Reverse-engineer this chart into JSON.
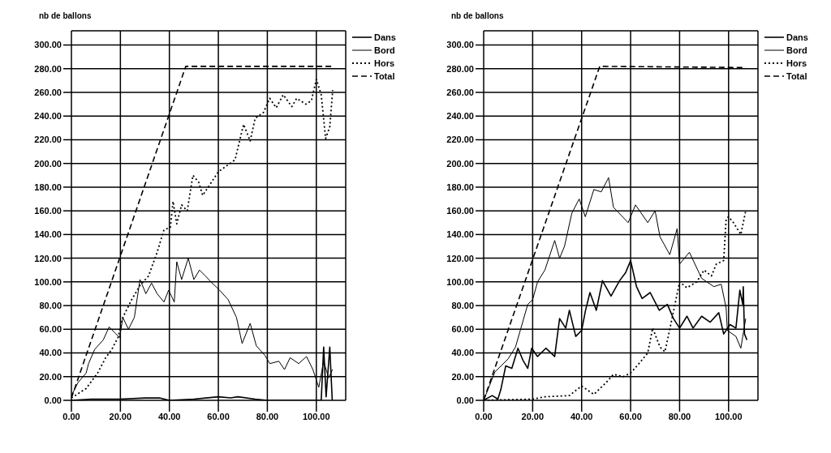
{
  "chart_data": [
    {
      "type": "line",
      "ylabel": "nb de ballons",
      "xlim": [
        0,
        112
      ],
      "ylim": [
        0,
        312
      ],
      "xticks": [
        {
          "value": 0,
          "label": "0.00"
        },
        {
          "value": 20,
          "label": "20.00"
        },
        {
          "value": 40,
          "label": "40.00"
        },
        {
          "value": 60,
          "label": "60.00"
        },
        {
          "value": 80,
          "label": "80.00"
        },
        {
          "value": 100,
          "label": "100.00"
        }
      ],
      "yticks": [
        {
          "value": 0,
          "label": "0.00"
        },
        {
          "value": 20,
          "label": "20.00"
        },
        {
          "value": 40,
          "label": "40.00"
        },
        {
          "value": 60,
          "label": "60.00"
        },
        {
          "value": 80,
          "label": "80.00"
        },
        {
          "value": 100,
          "label": "100.00"
        },
        {
          "value": 120,
          "label": "120.00"
        },
        {
          "value": 140,
          "label": "140.00"
        },
        {
          "value": 160,
          "label": "160.00"
        },
        {
          "value": 180,
          "label": "180.00"
        },
        {
          "value": 200,
          "label": "200.00"
        },
        {
          "value": 220,
          "label": "220.00"
        },
        {
          "value": 240,
          "label": "240.00"
        },
        {
          "value": 260,
          "label": "260.00"
        },
        {
          "value": 280,
          "label": "280.00"
        },
        {
          "value": 300,
          "label": "300.00"
        }
      ],
      "grid": true,
      "legend": "top right",
      "marker": "none",
      "series": [
        {
          "name": "Dans",
          "color": "#000000",
          "line_style": "solid",
          "x": [
            0,
            8,
            20,
            30,
            36,
            40,
            50,
            60,
            65,
            68,
            75,
            80,
            90,
            102,
            103,
            104,
            105.5,
            106.5
          ],
          "values": [
            0,
            1,
            1,
            2,
            2,
            0,
            1,
            3,
            2,
            3,
            1,
            0,
            0,
            0,
            45,
            3,
            45,
            0
          ]
        },
        {
          "name": "Bord",
          "color": "#000000",
          "line_style": "solid",
          "x": [
            0,
            2.7,
            6,
            7,
            9.5,
            13,
            15.4,
            17.7,
            19.7,
            21,
            23.3,
            25.7,
            28,
            30.4,
            32.7,
            35,
            37.8,
            39.7,
            42,
            43,
            45,
            47.7,
            50,
            52.3,
            54.7,
            57,
            60.5,
            64,
            67.4,
            69.7,
            73,
            75.5,
            79,
            81,
            84.7,
            87,
            89.3,
            92.8,
            96,
            98.6,
            101,
            103,
            105,
            106.6
          ],
          "values": [
            4,
            15,
            23,
            31,
            43,
            51,
            62,
            57,
            53,
            70,
            60,
            70,
            102,
            90,
            99,
            90,
            83,
            93,
            83,
            117,
            102,
            120,
            102,
            110,
            105,
            100,
            93,
            85,
            70,
            48,
            65,
            46,
            38,
            31,
            33,
            26,
            36,
            31,
            37,
            26,
            11,
            33,
            19,
            26
          ]
        },
        {
          "name": "Hors",
          "color": "#000000",
          "line_style": "dotted",
          "x": [
            0,
            1.5,
            6,
            10.7,
            14,
            16.5,
            19,
            21,
            24.6,
            28,
            31.5,
            35,
            37.8,
            40.4,
            41.5,
            43,
            45,
            47.3,
            49.6,
            52,
            53.6,
            56.5,
            60,
            63.4,
            66.8,
            70.3,
            73,
            75,
            78.4,
            81,
            83.6,
            86.5,
            90,
            92,
            95.7,
            98,
            100,
            102,
            103.8,
            105.5,
            106.7
          ],
          "values": [
            2,
            4,
            10,
            23,
            36,
            43,
            53,
            70,
            85,
            97,
            105,
            125,
            144,
            146,
            168,
            149,
            165,
            160,
            190,
            184,
            173,
            182,
            193,
            198,
            203,
            233,
            219,
            238,
            243,
            255,
            247,
            258,
            248,
            255,
            250,
            253,
            271,
            258,
            221,
            231,
            262
          ]
        },
        {
          "name": "Total",
          "color": "#000000",
          "line_style": "dashed",
          "x": [
            0,
            46.7,
            107
          ],
          "values": [
            2,
            282,
            282
          ]
        }
      ]
    },
    {
      "type": "line",
      "ylabel": "nb de ballons",
      "xlim": [
        0,
        112
      ],
      "ylim": [
        0,
        312
      ],
      "xticks": [
        {
          "value": 0,
          "label": "0.00"
        },
        {
          "value": 20,
          "label": "20.00"
        },
        {
          "value": 40,
          "label": "40.00"
        },
        {
          "value": 60,
          "label": "60.00"
        },
        {
          "value": 80,
          "label": "80.00"
        },
        {
          "value": 100,
          "label": "100.00"
        }
      ],
      "yticks": [
        {
          "value": 0,
          "label": "0.00"
        },
        {
          "value": 20,
          "label": "20.00"
        },
        {
          "value": 40,
          "label": "40.00"
        },
        {
          "value": 60,
          "label": "60.00"
        },
        {
          "value": 80,
          "label": "80.00"
        },
        {
          "value": 100,
          "label": "100.00"
        },
        {
          "value": 120,
          "label": "120.00"
        },
        {
          "value": 140,
          "label": "140.00"
        },
        {
          "value": 160,
          "label": "160.00"
        },
        {
          "value": 180,
          "label": "180.00"
        },
        {
          "value": 200,
          "label": "200.00"
        },
        {
          "value": 220,
          "label": "220.00"
        },
        {
          "value": 240,
          "label": "240.00"
        },
        {
          "value": 260,
          "label": "260.00"
        },
        {
          "value": 280,
          "label": "280.00"
        },
        {
          "value": 300,
          "label": "300.00"
        }
      ],
      "grid": true,
      "legend": "top right",
      "marker": "none",
      "series": [
        {
          "name": "Dans",
          "color": "#000000",
          "line_style": "solid",
          "x": [
            0,
            3.5,
            5.8,
            7,
            9,
            11.5,
            14,
            16,
            18,
            19.6,
            22,
            25.4,
            29,
            31,
            33.5,
            35,
            37.6,
            40,
            41.6,
            43.4,
            46,
            48.5,
            52,
            55.5,
            58,
            60,
            62.4,
            64.7,
            68,
            71.7,
            75,
            77.5,
            80,
            83,
            85.5,
            89,
            92.5,
            96,
            98,
            100.6,
            103,
            104.6,
            105.8,
            106,
            106.5,
            107.5
          ],
          "values": [
            0,
            4,
            1,
            9,
            29,
            27,
            44,
            34,
            27,
            44,
            37,
            44,
            37,
            69,
            61,
            76,
            54,
            59,
            76,
            91,
            76,
            101,
            88,
            101,
            108,
            118,
            96,
            86,
            91,
            76,
            81,
            69,
            61,
            71,
            61,
            71,
            66,
            74,
            56,
            64,
            61,
            93,
            81,
            96,
            56,
            51
          ]
        },
        {
          "name": "Bord",
          "color": "#000000",
          "line_style": "solid",
          "x": [
            0,
            4.6,
            10,
            13,
            18,
            20,
            22,
            25,
            29,
            31,
            33,
            36,
            39,
            41.5,
            45,
            48,
            51,
            53,
            59,
            62,
            67,
            70,
            72,
            76,
            79,
            80,
            84,
            89,
            94,
            97,
            99,
            99.5,
            103,
            105,
            107
          ],
          "values": [
            0,
            24,
            35,
            45,
            81,
            85,
            100,
            110,
            135,
            120,
            130,
            158,
            170,
            155,
            178,
            176,
            188,
            163,
            150,
            165,
            150,
            160,
            138,
            123,
            145,
            115,
            125,
            103,
            96,
            98,
            78,
            59,
            54,
            44,
            69
          ]
        },
        {
          "name": "Hors",
          "color": "#000000",
          "line_style": "dotted",
          "x": [
            0,
            20,
            25,
            35,
            38,
            40,
            45,
            50,
            53,
            57,
            60,
            63,
            67,
            69,
            72,
            74,
            76,
            78,
            80,
            83,
            87,
            90,
            93,
            95,
            98,
            99,
            100,
            102,
            105,
            107
          ],
          "values": [
            0,
            1,
            3,
            4,
            9,
            12,
            5,
            15,
            22,
            20,
            23,
            30,
            40,
            61,
            45,
            41,
            60,
            80,
            100,
            95,
            100,
            110,
            105,
            115,
            118,
            153,
            155,
            150,
            140,
            160
          ]
        },
        {
          "name": "Total",
          "color": "#000000",
          "line_style": "dashed",
          "x": [
            0,
            47.4,
            107
          ],
          "values": [
            0,
            282,
            281
          ]
        }
      ]
    }
  ]
}
